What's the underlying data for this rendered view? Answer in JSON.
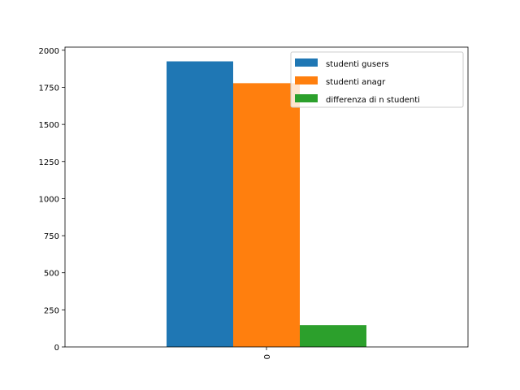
{
  "chart_data": {
    "type": "bar",
    "categories": [
      "0"
    ],
    "series": [
      {
        "name": "studenti gusers",
        "values": [
          1925
        ],
        "color": "#1f77b4"
      },
      {
        "name": "studenti anagr",
        "values": [
          1778
        ],
        "color": "#ff7f0e"
      },
      {
        "name": "differenza di n studenti",
        "values": [
          147
        ],
        "color": "#2ca02c"
      }
    ],
    "title": "",
    "xlabel": "",
    "ylabel": "",
    "ylim": [
      0,
      2021
    ],
    "yticks": [
      0,
      250,
      500,
      750,
      1000,
      1250,
      1500,
      1750,
      2000
    ],
    "legend": "top-right",
    "grid": false
  }
}
